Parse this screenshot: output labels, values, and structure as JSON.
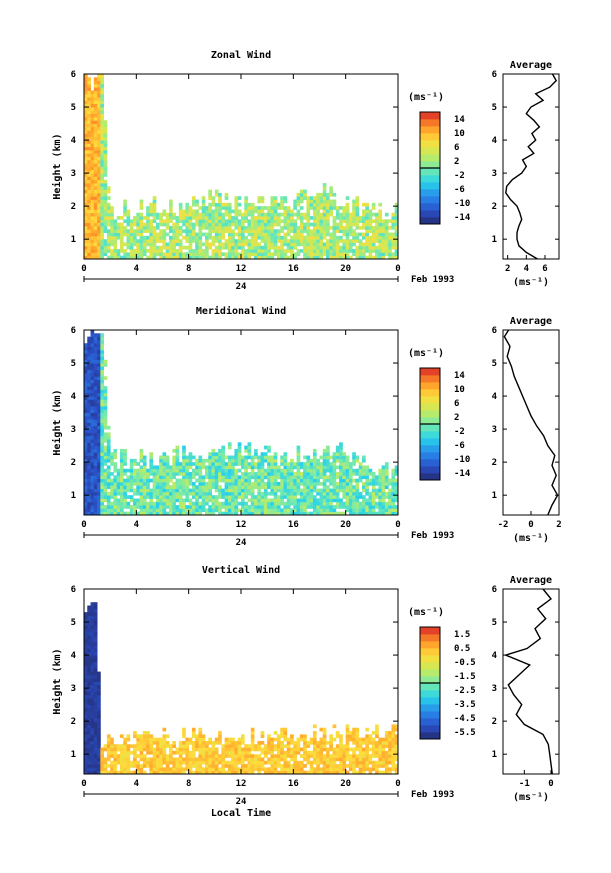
{
  "chart_data": [
    {
      "type": "heatmap",
      "title": "Zonal Wind",
      "ylabel": "Height (km)",
      "xlabel": "",
      "x_ticks": [
        "0",
        "4",
        "8",
        "12",
        "16",
        "20",
        "0"
      ],
      "x_range": [
        0,
        24
      ],
      "y_ticks": [
        "1",
        "2",
        "3",
        "4",
        "5",
        "6"
      ],
      "y_range": [
        0.4,
        6
      ],
      "date_label": "24",
      "date_suffix": "Feb 1993",
      "colorbar": {
        "unit": "(ms⁻¹)",
        "ticks": [
          "14",
          "10",
          "6",
          "2",
          "-2",
          "-6",
          "-10",
          "-14"
        ],
        "range": [
          -16,
          16
        ]
      },
      "bias": 2.5,
      "spread": 4.5,
      "upper_value": 10,
      "col_profile": [
        {
          "x": 0,
          "h": 5.8
        },
        {
          "x": 1.5,
          "h": 5.8
        },
        {
          "x": 2,
          "h": 1.9
        },
        {
          "x": 8,
          "h": 2.0
        },
        {
          "x": 10,
          "h": 2.3
        },
        {
          "x": 12,
          "h": 2.1
        },
        {
          "x": 15,
          "h": 2.0
        },
        {
          "x": 18,
          "h": 2.5
        },
        {
          "x": 21,
          "h": 2.0
        },
        {
          "x": 24,
          "h": 1.8
        }
      ],
      "average": {
        "title": "Average",
        "unit": "(ms⁻¹)",
        "x_ticks": [
          "2",
          "4",
          "6"
        ],
        "x_range": [
          1.5,
          7.5
        ],
        "profile": [
          {
            "h": 0.4,
            "v": 5.2
          },
          {
            "h": 0.6,
            "v": 4.0
          },
          {
            "h": 0.8,
            "v": 3.2
          },
          {
            "h": 1.0,
            "v": 3.0
          },
          {
            "h": 1.2,
            "v": 3.0
          },
          {
            "h": 1.4,
            "v": 3.2
          },
          {
            "h": 1.6,
            "v": 3.5
          },
          {
            "h": 1.8,
            "v": 3.3
          },
          {
            "h": 2.0,
            "v": 3.0
          },
          {
            "h": 2.2,
            "v": 2.3
          },
          {
            "h": 2.4,
            "v": 1.8
          },
          {
            "h": 2.6,
            "v": 1.9
          },
          {
            "h": 2.8,
            "v": 2.5
          },
          {
            "h": 3.0,
            "v": 3.5
          },
          {
            "h": 3.2,
            "v": 4.0
          },
          {
            "h": 3.4,
            "v": 3.6
          },
          {
            "h": 3.6,
            "v": 4.8
          },
          {
            "h": 3.8,
            "v": 4.2
          },
          {
            "h": 4.0,
            "v": 5.0
          },
          {
            "h": 4.2,
            "v": 4.6
          },
          {
            "h": 4.4,
            "v": 5.4
          },
          {
            "h": 4.6,
            "v": 4.8
          },
          {
            "h": 4.8,
            "v": 4.0
          },
          {
            "h": 5.0,
            "v": 4.5
          },
          {
            "h": 5.2,
            "v": 5.8
          },
          {
            "h": 5.4,
            "v": 5.0
          },
          {
            "h": 5.6,
            "v": 6.5
          },
          {
            "h": 5.8,
            "v": 7.2
          },
          {
            "h": 6.0,
            "v": 6.8
          }
        ]
      }
    },
    {
      "type": "heatmap",
      "title": "Meridional Wind",
      "ylabel": "Height (km)",
      "xlabel": "",
      "x_ticks": [
        "0",
        "4",
        "8",
        "12",
        "16",
        "20",
        "0"
      ],
      "x_range": [
        0,
        24
      ],
      "y_ticks": [
        "1",
        "2",
        "3",
        "4",
        "5",
        "6"
      ],
      "y_range": [
        0.4,
        6
      ],
      "date_label": "24",
      "date_suffix": "Feb 1993",
      "colorbar": {
        "unit": "(ms⁻¹)",
        "ticks": [
          "14",
          "10",
          "6",
          "2",
          "-2",
          "-6",
          "-10",
          "-14"
        ],
        "range": [
          -16,
          16
        ]
      },
      "bias": -0.5,
      "spread": 4.0,
      "upper_value": -12,
      "col_profile": [
        {
          "x": 0,
          "h": 5.8
        },
        {
          "x": 1.5,
          "h": 5.8
        },
        {
          "x": 2,
          "h": 2.2
        },
        {
          "x": 6,
          "h": 2.1
        },
        {
          "x": 10,
          "h": 2.4
        },
        {
          "x": 13,
          "h": 2.5
        },
        {
          "x": 16,
          "h": 2.2
        },
        {
          "x": 19,
          "h": 2.4
        },
        {
          "x": 22,
          "h": 1.9
        },
        {
          "x": 24,
          "h": 1.7
        }
      ],
      "average": {
        "title": "Average",
        "unit": "(ms⁻¹)",
        "x_ticks": [
          "-2",
          "0",
          "2"
        ],
        "x_range": [
          -2,
          2
        ],
        "profile": [
          {
            "h": 0.4,
            "v": 1.2
          },
          {
            "h": 0.7,
            "v": 1.5
          },
          {
            "h": 1.0,
            "v": 1.9
          },
          {
            "h": 1.3,
            "v": 1.5
          },
          {
            "h": 1.6,
            "v": 1.8
          },
          {
            "h": 1.9,
            "v": 1.5
          },
          {
            "h": 2.2,
            "v": 1.7
          },
          {
            "h": 2.5,
            "v": 1.2
          },
          {
            "h": 2.8,
            "v": 0.9
          },
          {
            "h": 3.1,
            "v": 0.4
          },
          {
            "h": 3.4,
            "v": 0.0
          },
          {
            "h": 3.7,
            "v": -0.3
          },
          {
            "h": 4.0,
            "v": -0.6
          },
          {
            "h": 4.3,
            "v": -0.9
          },
          {
            "h": 4.6,
            "v": -1.2
          },
          {
            "h": 4.9,
            "v": -1.4
          },
          {
            "h": 5.2,
            "v": -1.7
          },
          {
            "h": 5.5,
            "v": -1.5
          },
          {
            "h": 5.8,
            "v": -1.9
          },
          {
            "h": 6.0,
            "v": -1.6
          }
        ]
      }
    },
    {
      "type": "heatmap",
      "title": "Vertical Wind",
      "ylabel": "Height (km)",
      "xlabel": "Local Time",
      "x_ticks": [
        "0",
        "4",
        "8",
        "12",
        "16",
        "20",
        "0"
      ],
      "x_range": [
        0,
        24
      ],
      "y_ticks": [
        "1",
        "2",
        "3",
        "4",
        "5",
        "6"
      ],
      "y_range": [
        0.4,
        6
      ],
      "date_label": "24",
      "date_suffix": "Feb 1993",
      "colorbar": {
        "unit": "(ms⁻¹)",
        "ticks": [
          "1.5",
          "0.5",
          "-0.5",
          "-1.5",
          "-2.5",
          "-3.5",
          "-4.5",
          "-5.5"
        ],
        "range": [
          -6,
          2
        ]
      },
      "bias": 0.2,
      "spread": 0.5,
      "upper_value": -5.5,
      "col_profile": [
        {
          "x": 0,
          "h": 5.4
        },
        {
          "x": 1,
          "h": 5.4
        },
        {
          "x": 1.3,
          "h": 1.4
        },
        {
          "x": 6,
          "h": 1.5
        },
        {
          "x": 12,
          "h": 1.6
        },
        {
          "x": 16,
          "h": 1.5
        },
        {
          "x": 20,
          "h": 1.7
        },
        {
          "x": 24,
          "h": 1.7
        }
      ],
      "average": {
        "title": "Average",
        "unit": "(ms⁻¹)",
        "x_ticks": [
          "-1",
          "0"
        ],
        "x_range": [
          -1.8,
          0.3
        ],
        "profile": [
          {
            "h": 0.4,
            "v": 0.05
          },
          {
            "h": 0.7,
            "v": 0.0
          },
          {
            "h": 1.0,
            "v": -0.05
          },
          {
            "h": 1.3,
            "v": -0.1
          },
          {
            "h": 1.6,
            "v": -0.3
          },
          {
            "h": 1.9,
            "v": -1.0
          },
          {
            "h": 2.2,
            "v": -1.3
          },
          {
            "h": 2.5,
            "v": -1.1
          },
          {
            "h": 2.8,
            "v": -1.4
          },
          {
            "h": 3.1,
            "v": -1.6
          },
          {
            "h": 3.4,
            "v": -1.2
          },
          {
            "h": 3.7,
            "v": -0.8
          },
          {
            "h": 4.0,
            "v": -1.7
          },
          {
            "h": 4.2,
            "v": -0.9
          },
          {
            "h": 4.5,
            "v": -0.4
          },
          {
            "h": 4.8,
            "v": -0.6
          },
          {
            "h": 5.1,
            "v": -0.2
          },
          {
            "h": 5.4,
            "v": -0.5
          },
          {
            "h": 5.7,
            "v": 0.0
          },
          {
            "h": 6.0,
            "v": -0.3
          }
        ]
      }
    }
  ]
}
